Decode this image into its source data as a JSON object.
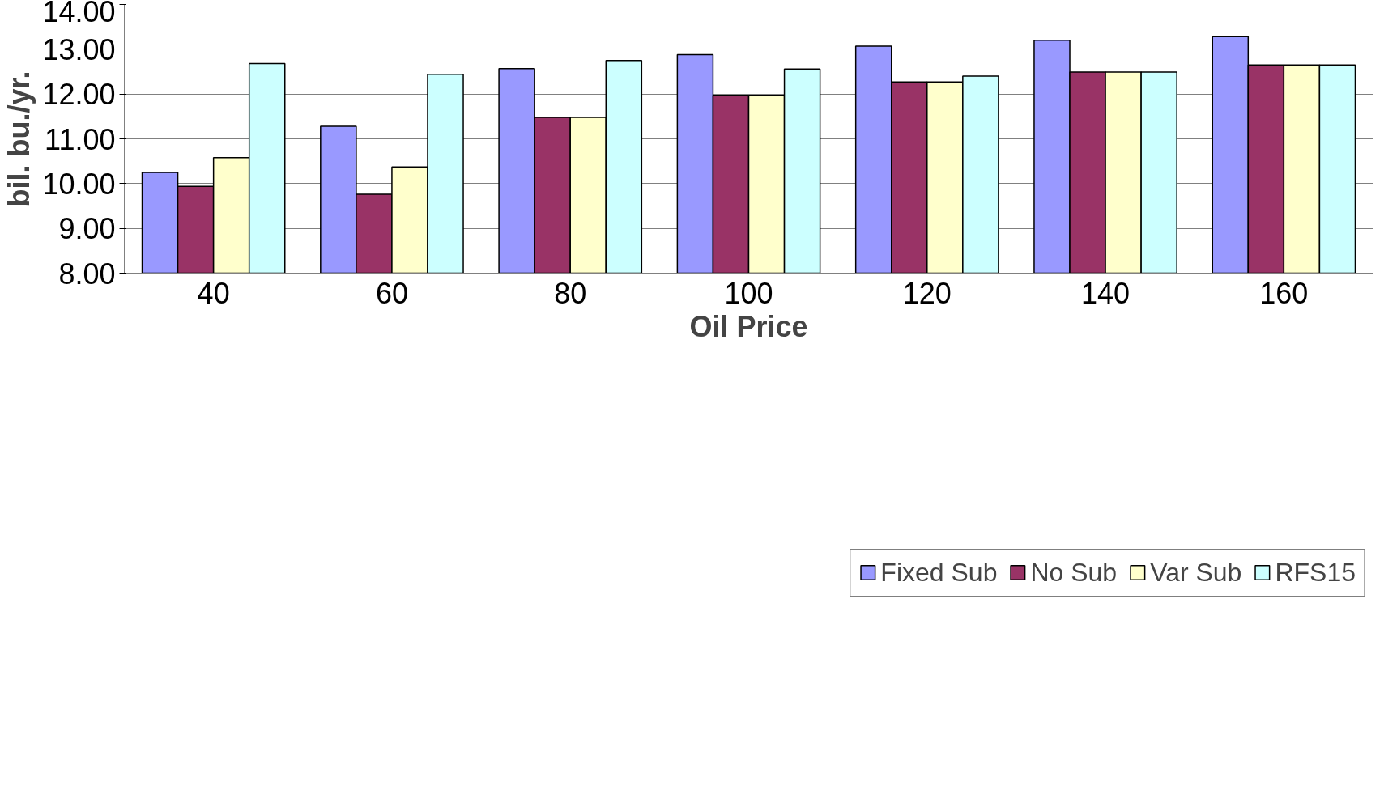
{
  "chart_data": {
    "type": "bar",
    "xlabel": "Oil Price",
    "ylabel": "bil. bu./yr.",
    "categories": [
      "40",
      "60",
      "80",
      "100",
      "120",
      "140",
      "160"
    ],
    "series": [
      {
        "name": "Fixed Sub",
        "color": "#9999ff",
        "values": [
          10.25,
          11.28,
          12.57,
          12.88,
          13.07,
          13.2,
          13.28
        ]
      },
      {
        "name": "No Sub",
        "color": "#993366",
        "values": [
          9.94,
          9.76,
          11.48,
          11.97,
          12.27,
          12.49,
          12.65
        ]
      },
      {
        "name": "Var Sub",
        "color": "#ffffcc",
        "values": [
          10.58,
          10.37,
          11.48,
          11.97,
          12.27,
          12.49,
          12.65
        ]
      },
      {
        "name": "RFS15",
        "color": "#ccffff",
        "values": [
          12.68,
          12.44,
          12.75,
          12.56,
          12.4,
          12.49,
          12.65
        ]
      }
    ],
    "ylim": [
      8,
      14
    ],
    "yticks": [
      {
        "value": 8,
        "label": "8.00"
      },
      {
        "value": 9,
        "label": "9.00"
      },
      {
        "value": 10,
        "label": "10.00"
      },
      {
        "value": 11,
        "label": "11.00"
      },
      {
        "value": 12,
        "label": "12.00"
      },
      {
        "value": 13,
        "label": "13.00"
      },
      {
        "value": 14,
        "label": "14.00"
      }
    ],
    "grid": "y",
    "legend": "bottom"
  }
}
